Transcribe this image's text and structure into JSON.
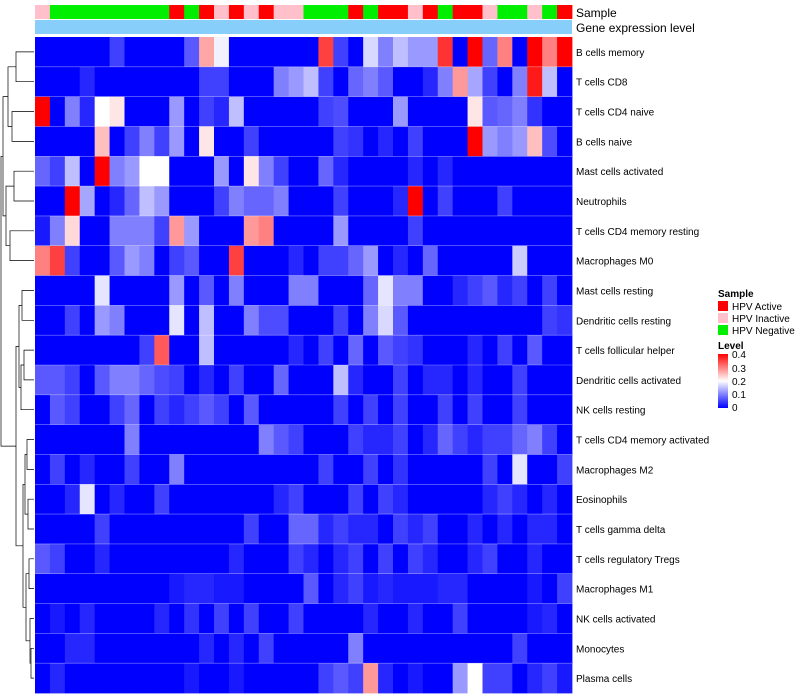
{
  "chart_data": {
    "type": "heatmap",
    "annotation_labels": [
      "Sample",
      "Gene expression level"
    ],
    "rows": [
      "B cells memory",
      "T cells CD8",
      "T cells CD4 naive",
      "B cells naive",
      "Mast cells activated",
      "Neutrophils",
      "T cells CD4 memory resting",
      "Macrophages M0",
      "Mast cells resting",
      "Dendritic cells resting",
      "T cells follicular helper",
      "Dendritic cells activated",
      "NK cells resting",
      "T cells CD4 memory activated",
      "Macrophages M2",
      "Eosinophils",
      "T cells gamma delta",
      "T cells regulatory  Tregs",
      "Macrophages M1",
      "NK cells activated",
      "Monocytes",
      "Plasma cells"
    ],
    "sample_groups": [
      "I",
      "N",
      "N",
      "N",
      "N",
      "N",
      "N",
      "N",
      "N",
      "A",
      "N",
      "A",
      "I",
      "A",
      "I",
      "A",
      "I",
      "I",
      "N",
      "N",
      "N",
      "A",
      "N",
      "A",
      "A",
      "I",
      "A",
      "N",
      "A",
      "A",
      "I",
      "N",
      "N",
      "I",
      "N",
      "A"
    ],
    "legend": {
      "sample": {
        "title": "Sample",
        "items": [
          {
            "key": "A",
            "label": "HPV Active",
            "color": "#ff0000"
          },
          {
            "key": "I",
            "label": "HPV Inactive",
            "color": "#ffc0cb"
          },
          {
            "key": "N",
            "label": "HPV Negative",
            "color": "#00ee00"
          }
        ]
      },
      "level": {
        "title": "Level",
        "ticks": [
          "0.4",
          "0.3",
          "0.2",
          "0.1",
          "0"
        ],
        "range": [
          0,
          0.4
        ]
      }
    },
    "color_stops": [
      "#0000ff",
      "#ffffff",
      "#ff0000"
    ],
    "gene_expression_color": "#87cefa",
    "values": [
      [
        0,
        0,
        0,
        0,
        0,
        0.05,
        0,
        0,
        0,
        0,
        0.07,
        0.27,
        0.19,
        0,
        0,
        0,
        0,
        0,
        0,
        0.35,
        0.05,
        0,
        0.17,
        0.1,
        0.15,
        0.12,
        0.12,
        0.36,
        0,
        0.4,
        0.08,
        0.3,
        0,
        0.4,
        0.3,
        0.4
      ],
      [
        0,
        0,
        0,
        0.03,
        0,
        0,
        0,
        0,
        0,
        0,
        0,
        0.05,
        0.05,
        0,
        0,
        0,
        0.1,
        0.12,
        0.15,
        0.05,
        0,
        0.08,
        0.1,
        0.07,
        0,
        0,
        0.03,
        0.1,
        0.28,
        0.13,
        0.05,
        0,
        0.1,
        0.38,
        0.15,
        0
      ],
      [
        0.4,
        0,
        0.1,
        0.03,
        0.2,
        0.22,
        0,
        0,
        0,
        0.12,
        0,
        0.05,
        0.03,
        0.15,
        0,
        0,
        0,
        0,
        0,
        0.05,
        0.06,
        0,
        0,
        0,
        0.12,
        0,
        0,
        0,
        0,
        0.22,
        0.07,
        0.08,
        0.1,
        0.04,
        0,
        0
      ],
      [
        0,
        0,
        0,
        0,
        0.25,
        0,
        0.05,
        0.1,
        0.05,
        0.12,
        0,
        0.22,
        0,
        0,
        0.05,
        0,
        0,
        0,
        0,
        0,
        0.05,
        0.04,
        0,
        0.03,
        0,
        0.05,
        0,
        0,
        0,
        0.4,
        0.12,
        0.1,
        0.12,
        0.25,
        0.06,
        0
      ],
      [
        0.08,
        0.05,
        0.15,
        0,
        0.4,
        0.1,
        0.12,
        0.2,
        0.2,
        0,
        0,
        0,
        0.12,
        0,
        0.22,
        0.1,
        0.05,
        0,
        0,
        0.08,
        0.03,
        0,
        0,
        0,
        0,
        0.03,
        0,
        0.03,
        0,
        0,
        0,
        0,
        0,
        0,
        0,
        0
      ],
      [
        0,
        0,
        0.4,
        0.13,
        0,
        0.03,
        0.08,
        0.15,
        0.12,
        0,
        0,
        0,
        0.05,
        0.1,
        0.08,
        0.08,
        0.1,
        0,
        0,
        0,
        0.05,
        0,
        0,
        0,
        0.03,
        0.4,
        0,
        0.05,
        0,
        0,
        0,
        0.05,
        0,
        0,
        0,
        0
      ],
      [
        0.02,
        0.1,
        0.23,
        0,
        0,
        0.1,
        0.1,
        0.1,
        0.05,
        0.28,
        0.12,
        0,
        0,
        0,
        0.28,
        0.3,
        0,
        0,
        0,
        0,
        0.12,
        0,
        0,
        0,
        0,
        0.05,
        0,
        0,
        0,
        0,
        0,
        0,
        0,
        0,
        0,
        0
      ],
      [
        0.3,
        0.35,
        0.05,
        0,
        0,
        0.07,
        0.12,
        0.1,
        0,
        0.05,
        0.07,
        0,
        0,
        0.35,
        0,
        0,
        0,
        0.03,
        0,
        0.05,
        0.05,
        0.08,
        0.12,
        0,
        0.03,
        0,
        0.08,
        0,
        0,
        0,
        0,
        0,
        0.16,
        0,
        0,
        0
      ],
      [
        0,
        0,
        0,
        0,
        0.18,
        0,
        0,
        0,
        0,
        0.12,
        0,
        0.07,
        0,
        0.1,
        0,
        0,
        0,
        0.1,
        0.1,
        0,
        0,
        0,
        0.08,
        0.18,
        0.1,
        0.1,
        0,
        0,
        0.03,
        0.05,
        0.07,
        0.03,
        0.05,
        0,
        0.05,
        0
      ],
      [
        0,
        0,
        0.05,
        0,
        0.12,
        0.1,
        0,
        0,
        0,
        0.18,
        0,
        0.15,
        0,
        0,
        0.1,
        0.06,
        0.06,
        0,
        0,
        0,
        0.05,
        0,
        0.1,
        0.17,
        0.07,
        0,
        0,
        0,
        0,
        0,
        0,
        0,
        0,
        0,
        0.05,
        0.04
      ],
      [
        0,
        0,
        0,
        0,
        0,
        0,
        0,
        0.05,
        0.33,
        0,
        0,
        0.15,
        0,
        0,
        0,
        0,
        0,
        0.03,
        0,
        0.05,
        0,
        0.08,
        0,
        0.07,
        0.05,
        0.04,
        0,
        0,
        0,
        0.03,
        0,
        0.05,
        0,
        0.07,
        0,
        0
      ],
      [
        0.07,
        0.07,
        0.05,
        0,
        0.07,
        0.1,
        0.1,
        0.08,
        0.06,
        0.05,
        0,
        0.03,
        0,
        0.05,
        0,
        0,
        0.08,
        0,
        0,
        0,
        0.15,
        0.03,
        0,
        0,
        0.05,
        0,
        0.03,
        0.03,
        0,
        0.03,
        0,
        0,
        0.05,
        0,
        0,
        0
      ],
      [
        0,
        0.07,
        0.05,
        0,
        0,
        0.05,
        0.08,
        0,
        0.05,
        0.03,
        0.05,
        0.07,
        0.05,
        0,
        0.07,
        0,
        0,
        0,
        0,
        0,
        0.05,
        0,
        0.05,
        0,
        0.05,
        0,
        0,
        0.05,
        0,
        0.05,
        0,
        0,
        0.05,
        0,
        0,
        0
      ],
      [
        0,
        0,
        0,
        0,
        0,
        0,
        0.1,
        0,
        0,
        0,
        0,
        0,
        0,
        0,
        0,
        0.1,
        0.07,
        0.05,
        0,
        0,
        0,
        0.05,
        0.03,
        0.03,
        0.05,
        0,
        0.03,
        0.08,
        0.05,
        0.03,
        0.05,
        0.05,
        0.08,
        0.1,
        0.05,
        0
      ],
      [
        0,
        0.05,
        0,
        0.03,
        0,
        0,
        0.05,
        0,
        0,
        0.1,
        0,
        0,
        0,
        0,
        0,
        0,
        0,
        0,
        0,
        0.05,
        0,
        0,
        0.05,
        0,
        0.04,
        0,
        0,
        0,
        0,
        0,
        0.05,
        0,
        0.18,
        0,
        0,
        0.05
      ],
      [
        0,
        0,
        0.03,
        0.18,
        0,
        0.03,
        0,
        0,
        0.05,
        0,
        0,
        0,
        0,
        0,
        0,
        0,
        0.03,
        0.05,
        0,
        0,
        0,
        0.05,
        0,
        0.05,
        0.03,
        0,
        0,
        0,
        0,
        0,
        0.03,
        0.05,
        0.03,
        0,
        0.03,
        0
      ],
      [
        0,
        0,
        0,
        0,
        0.05,
        0,
        0,
        0,
        0,
        0,
        0,
        0,
        0,
        0,
        0.05,
        0,
        0,
        0.08,
        0.08,
        0.03,
        0.05,
        0.03,
        0.03,
        0,
        0.05,
        0.03,
        0.05,
        0,
        0,
        0.03,
        0,
        0.03,
        0,
        0.03,
        0.03,
        0
      ],
      [
        0.07,
        0.05,
        0,
        0,
        0.03,
        0,
        0,
        0,
        0,
        0,
        0,
        0,
        0,
        0.03,
        0,
        0,
        0,
        0.05,
        0.03,
        0,
        0.03,
        0.05,
        0,
        0.05,
        0,
        0.05,
        0.03,
        0,
        0,
        0.03,
        0.05,
        0,
        0,
        0.03,
        0,
        0
      ],
      [
        0,
        0,
        0,
        0,
        0,
        0,
        0,
        0,
        0,
        0.02,
        0.03,
        0.03,
        0.02,
        0.02,
        0,
        0,
        0,
        0,
        0.07,
        0,
        0.03,
        0.05,
        0.02,
        0.03,
        0.02,
        0.02,
        0.02,
        0.03,
        0.03,
        0,
        0,
        0,
        0,
        0.02,
        0,
        0.05
      ],
      [
        0,
        0.02,
        0,
        0.03,
        0,
        0,
        0,
        0,
        0.03,
        0,
        0.04,
        0,
        0.05,
        0,
        0.05,
        0,
        0,
        0.05,
        0,
        0,
        0,
        0,
        0.03,
        0,
        0,
        0.03,
        0,
        0,
        0.05,
        0,
        0,
        0,
        0,
        0.02,
        0.03,
        0
      ],
      [
        0,
        0,
        0.03,
        0.03,
        0,
        0,
        0,
        0,
        0,
        0,
        0,
        0.03,
        0,
        0.03,
        0,
        0.05,
        0,
        0,
        0,
        0,
        0,
        0.1,
        0,
        0,
        0,
        0,
        0,
        0,
        0,
        0,
        0,
        0,
        0.05,
        0,
        0,
        0
      ],
      [
        0,
        0.03,
        0,
        0,
        0,
        0,
        0,
        0,
        0,
        0,
        0.02,
        0,
        0,
        0.02,
        0,
        0,
        0,
        0,
        0,
        0.05,
        0.07,
        0.05,
        0.28,
        0.03,
        0,
        0.02,
        0,
        0,
        0.12,
        0.2,
        0.05,
        0.05,
        0,
        0.03,
        0.05,
        0.02
      ]
    ]
  }
}
